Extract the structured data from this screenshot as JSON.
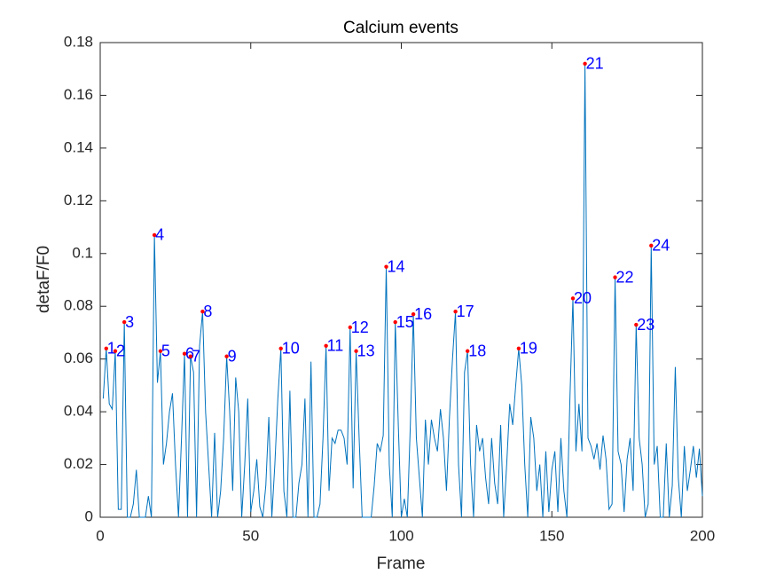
{
  "chart_data": {
    "type": "line",
    "title": "Calcium events",
    "xlabel": "Frame",
    "ylabel": "detaF/F0",
    "x": [
      1,
      2,
      3,
      4,
      5,
      6,
      7,
      8,
      9,
      10,
      11,
      12,
      13,
      14,
      15,
      16,
      17,
      18,
      19,
      20,
      21,
      22,
      23,
      24,
      25,
      26,
      27,
      28,
      29,
      30,
      31,
      32,
      33,
      34,
      35,
      36,
      37,
      38,
      39,
      40,
      41,
      42,
      43,
      44,
      45,
      46,
      47,
      48,
      49,
      50,
      51,
      52,
      53,
      54,
      55,
      56,
      57,
      58,
      59,
      60,
      61,
      62,
      63,
      64,
      65,
      66,
      67,
      68,
      69,
      70,
      71,
      72,
      73,
      74,
      75,
      76,
      77,
      78,
      79,
      80,
      81,
      82,
      83,
      84,
      85,
      86,
      87,
      88,
      89,
      90,
      91,
      92,
      93,
      94,
      95,
      96,
      97,
      98,
      99,
      100,
      101,
      102,
      103,
      104,
      105,
      106,
      107,
      108,
      109,
      110,
      111,
      112,
      113,
      114,
      115,
      116,
      117,
      118,
      119,
      120,
      121,
      122,
      123,
      124,
      125,
      126,
      127,
      128,
      129,
      130,
      131,
      132,
      133,
      134,
      135,
      136,
      137,
      138,
      139,
      140,
      141,
      142,
      143,
      144,
      145,
      146,
      147,
      148,
      149,
      150,
      151,
      152,
      153,
      154,
      155,
      156,
      157,
      158,
      159,
      160,
      161,
      162,
      163,
      164,
      165,
      166,
      167,
      168,
      169,
      170,
      171,
      172,
      173,
      174,
      175,
      176,
      177,
      178,
      179,
      180,
      181,
      182,
      183,
      184,
      185,
      186,
      187,
      188,
      189,
      190,
      191,
      192,
      193,
      194,
      195,
      196,
      197,
      198,
      199,
      200
    ],
    "series": [
      {
        "color": "#0072bd",
        "values": [
          0.045,
          0.064,
          0.043,
          0.041,
          0.063,
          0.003,
          0.003,
          0.074,
          0,
          0,
          0.005,
          0.018,
          0,
          0,
          0,
          0.008,
          0,
          0.107,
          0.051,
          0.063,
          0.02,
          0.028,
          0.04,
          0.047,
          0.02,
          0,
          0.03,
          0.062,
          0,
          0.061,
          0.055,
          0,
          0.065,
          0.078,
          0.04,
          0.02,
          0,
          0.032,
          0,
          0.01,
          0.03,
          0.061,
          0.04,
          0.01,
          0.053,
          0.04,
          0,
          0.02,
          0.045,
          0.002,
          0.01,
          0.022,
          0.004,
          0,
          0.012,
          0.038,
          0,
          0.02,
          0.045,
          0.064,
          0.01,
          0,
          0.048,
          0,
          0,
          0.013,
          0.02,
          0.045,
          0,
          0.059,
          0,
          0,
          0.005,
          0.03,
          0.065,
          0.01,
          0.03,
          0.028,
          0.033,
          0.033,
          0.03,
          0.02,
          0.072,
          0.011,
          0.063,
          0.03,
          0,
          0,
          0,
          0,
          0.012,
          0.028,
          0.025,
          0.031,
          0.095,
          0.02,
          0,
          0.074,
          0.035,
          0,
          0.007,
          0,
          0.035,
          0.077,
          0.03,
          0.015,
          0,
          0.037,
          0.02,
          0.037,
          0.03,
          0.025,
          0.041,
          0.03,
          0.01,
          0.038,
          0.06,
          0.078,
          0.02,
          0,
          0.055,
          0.063,
          0.02,
          0,
          0.035,
          0.025,
          0.03,
          0.015,
          0.005,
          0.03,
          0.013,
          0.005,
          0.035,
          0,
          0.02,
          0.043,
          0.035,
          0.05,
          0.064,
          0.05,
          0.02,
          0,
          0.038,
          0.03,
          0.01,
          0.02,
          0,
          0.025,
          0.002,
          0.018,
          0.025,
          0.002,
          0.03,
          0.01,
          0,
          0.045,
          0.083,
          0.025,
          0.043,
          0.025,
          0.172,
          0.03,
          0.027,
          0.022,
          0.028,
          0.018,
          0.031,
          0.022,
          0.003,
          0.005,
          0.091,
          0.025,
          0.02,
          0.002,
          0.022,
          0.03,
          0.01,
          0.073,
          0.03,
          0.02,
          0,
          0.005,
          0.103,
          0.02,
          0.027,
          0,
          0,
          0.028,
          0,
          0.012,
          0.057,
          0.015,
          0,
          0.027,
          0.01,
          0.018,
          0.027,
          0.015,
          0.026,
          0.008
        ]
      }
    ],
    "events": {
      "color": "#ff0000",
      "label_color": "#0000ff",
      "x": [
        2,
        5,
        8,
        18,
        20,
        28,
        30,
        34,
        42,
        60,
        75,
        83,
        85,
        95,
        98,
        104,
        118,
        122,
        139,
        157,
        161,
        171,
        178,
        183
      ],
      "values": [
        0.064,
        0.063,
        0.074,
        0.107,
        0.063,
        0.062,
        0.061,
        0.078,
        0.061,
        0.064,
        0.065,
        0.072,
        0.063,
        0.095,
        0.074,
        0.077,
        0.078,
        0.063,
        0.064,
        0.083,
        0.172,
        0.091,
        0.073,
        0.103
      ],
      "labels": [
        1,
        2,
        3,
        4,
        5,
        6,
        7,
        8,
        9,
        10,
        11,
        12,
        13,
        14,
        15,
        16,
        17,
        18,
        19,
        20,
        21,
        22,
        23,
        24
      ]
    },
    "xlim": [
      0,
      200
    ],
    "xticks": [
      0,
      50,
      100,
      150,
      200
    ],
    "ylim": [
      0,
      0.18
    ],
    "yticks": [
      0,
      0.02,
      0.04,
      0.06,
      0.08,
      0.1,
      0.12,
      0.14,
      0.16,
      0.18
    ]
  }
}
